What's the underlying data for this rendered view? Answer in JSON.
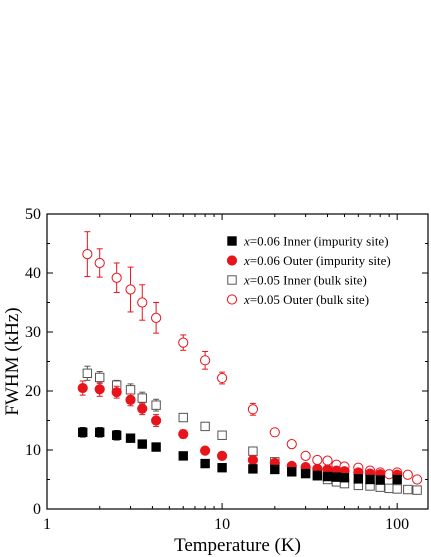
{
  "chart_data": {
    "type": "scatter",
    "xlabel": "Temperature (K)",
    "ylabel": "FWHM (kHz)",
    "xscale": "log",
    "xlim": [
      1,
      150
    ],
    "ylim": [
      0,
      50
    ],
    "xticks": [
      1,
      10,
      100
    ],
    "xtick_labels": [
      "1",
      "10",
      "100"
    ],
    "yticks": [
      0,
      10,
      20,
      30,
      40,
      50
    ],
    "ytick_labels": [
      "0",
      "10",
      "20",
      "30",
      "40",
      "50"
    ],
    "grid": false,
    "legend_position": "top-right",
    "series": [
      {
        "name": "x=0.06 Inner (impurity site)",
        "legend_var": "x",
        "legend_rest": "=0.06 Inner (impurity site)",
        "marker": "square-filled",
        "color": "#000000",
        "points": [
          {
            "x": 1.6,
            "y": 13.0,
            "err": 0.8
          },
          {
            "x": 2.0,
            "y": 13.0,
            "err": 0.8
          },
          {
            "x": 2.5,
            "y": 12.5,
            "err": 0.8
          },
          {
            "x": 3.0,
            "y": 12.0,
            "err": 0.6
          },
          {
            "x": 3.5,
            "y": 11.0,
            "err": 0.5
          },
          {
            "x": 4.2,
            "y": 10.5,
            "err": 0.5
          },
          {
            "x": 6.0,
            "y": 9.0,
            "err": 0
          },
          {
            "x": 8.0,
            "y": 7.7,
            "err": 0
          },
          {
            "x": 10.0,
            "y": 7.0,
            "err": 0
          },
          {
            "x": 15.0,
            "y": 6.8,
            "err": 0
          },
          {
            "x": 20.0,
            "y": 6.7,
            "err": 0
          },
          {
            "x": 25.0,
            "y": 6.3,
            "err": 0
          },
          {
            "x": 30.0,
            "y": 6.0,
            "err": 0
          },
          {
            "x": 35.0,
            "y": 5.7,
            "err": 0
          },
          {
            "x": 40.0,
            "y": 5.5,
            "err": 0
          },
          {
            "x": 45.0,
            "y": 5.4,
            "err": 0
          },
          {
            "x": 50.0,
            "y": 5.3,
            "err": 0
          },
          {
            "x": 60.0,
            "y": 5.1,
            "err": 0
          },
          {
            "x": 70.0,
            "y": 5.0,
            "err": 0
          },
          {
            "x": 80.0,
            "y": 4.9,
            "err": 0
          },
          {
            "x": 100.0,
            "y": 5.0,
            "err": 0
          }
        ]
      },
      {
        "name": "x=0.06 Outer (impurity site)",
        "legend_var": "x",
        "legend_rest": "=0.06 Outer (impurity site)",
        "marker": "circle-filled",
        "color": "#e8141b",
        "points": [
          {
            "x": 1.6,
            "y": 20.5,
            "err": 1.2
          },
          {
            "x": 2.0,
            "y": 20.3,
            "err": 1.2
          },
          {
            "x": 2.5,
            "y": 19.8,
            "err": 1.0
          },
          {
            "x": 3.0,
            "y": 18.5,
            "err": 1.0
          },
          {
            "x": 3.5,
            "y": 17.0,
            "err": 1.0
          },
          {
            "x": 4.2,
            "y": 15.0,
            "err": 1.0
          },
          {
            "x": 6.0,
            "y": 12.7,
            "err": 0.7
          },
          {
            "x": 8.0,
            "y": 9.9,
            "err": 0
          },
          {
            "x": 10.0,
            "y": 9.0,
            "err": 0
          },
          {
            "x": 15.0,
            "y": 8.3,
            "err": 0
          },
          {
            "x": 20.0,
            "y": 7.8,
            "err": 0
          },
          {
            "x": 25.0,
            "y": 7.3,
            "err": 0
          },
          {
            "x": 30.0,
            "y": 7.1,
            "err": 0
          },
          {
            "x": 35.0,
            "y": 6.8,
            "err": 0
          },
          {
            "x": 40.0,
            "y": 6.7,
            "err": 0
          },
          {
            "x": 45.0,
            "y": 6.5,
            "err": 0
          },
          {
            "x": 50.0,
            "y": 6.4,
            "err": 0
          },
          {
            "x": 60.0,
            "y": 6.2,
            "err": 0
          },
          {
            "x": 70.0,
            "y": 6.0,
            "err": 0
          },
          {
            "x": 80.0,
            "y": 5.9,
            "err": 0
          },
          {
            "x": 100.0,
            "y": 5.8,
            "err": 0
          }
        ]
      },
      {
        "name": "x=0.05 Inner (bulk site)",
        "legend_var": "x",
        "legend_rest": "=0.05 Inner (bulk site)",
        "marker": "square-open",
        "color": "#555555",
        "points": [
          {
            "x": 1.7,
            "y": 23.0,
            "err": 1.2
          },
          {
            "x": 2.0,
            "y": 22.3,
            "err": 1.0
          },
          {
            "x": 2.5,
            "y": 21.0,
            "err": 0.8
          },
          {
            "x": 3.0,
            "y": 20.2,
            "err": 1.0
          },
          {
            "x": 3.5,
            "y": 18.8,
            "err": 1.0
          },
          {
            "x": 4.2,
            "y": 17.6,
            "err": 1.0
          },
          {
            "x": 6.0,
            "y": 15.5,
            "err": 0
          },
          {
            "x": 8.0,
            "y": 14.0,
            "err": 0
          },
          {
            "x": 10.0,
            "y": 12.5,
            "err": 0
          },
          {
            "x": 15.0,
            "y": 9.8,
            "err": 0
          },
          {
            "x": 20.0,
            "y": 8.0,
            "err": 0
          },
          {
            "x": 25.0,
            "y": 6.9,
            "err": 0
          },
          {
            "x": 30.0,
            "y": 6.2,
            "err": 0
          },
          {
            "x": 35.0,
            "y": 5.6,
            "err": 0
          },
          {
            "x": 40.0,
            "y": 5.0,
            "err": 0
          },
          {
            "x": 45.0,
            "y": 4.6,
            "err": 0
          },
          {
            "x": 50.0,
            "y": 4.3,
            "err": 0
          },
          {
            "x": 60.0,
            "y": 4.0,
            "err": 0
          },
          {
            "x": 70.0,
            "y": 3.9,
            "err": 0
          },
          {
            "x": 80.0,
            "y": 3.7,
            "err": 0
          },
          {
            "x": 90.0,
            "y": 3.5,
            "err": 0
          },
          {
            "x": 100.0,
            "y": 3.4,
            "err": 0
          },
          {
            "x": 115.0,
            "y": 3.3,
            "err": 0
          },
          {
            "x": 130.0,
            "y": 3.2,
            "err": 0
          }
        ]
      },
      {
        "name": "x=0.05 Outer (bulk site)",
        "legend_var": "x",
        "legend_rest": "=0.05 Outer (bulk site)",
        "marker": "circle-open",
        "color": "#e8141b",
        "points": [
          {
            "x": 1.7,
            "y": 43.2,
            "err": 3.8
          },
          {
            "x": 2.0,
            "y": 41.7,
            "err": 2.4
          },
          {
            "x": 2.5,
            "y": 39.2,
            "err": 2.5
          },
          {
            "x": 3.0,
            "y": 37.2,
            "err": 3.8
          },
          {
            "x": 3.5,
            "y": 35.0,
            "err": 3.0
          },
          {
            "x": 4.2,
            "y": 32.4,
            "err": 2.6
          },
          {
            "x": 6.0,
            "y": 28.2,
            "err": 1.3
          },
          {
            "x": 8.0,
            "y": 25.2,
            "err": 1.5
          },
          {
            "x": 10.0,
            "y": 22.2,
            "err": 1.0
          },
          {
            "x": 15.0,
            "y": 16.9,
            "err": 1.0
          },
          {
            "x": 20.0,
            "y": 13.0,
            "err": 0
          },
          {
            "x": 25.0,
            "y": 11.0,
            "err": 0
          },
          {
            "x": 30.0,
            "y": 9.0,
            "err": 0
          },
          {
            "x": 35.0,
            "y": 8.3,
            "err": 0
          },
          {
            "x": 40.0,
            "y": 8.2,
            "err": 0
          },
          {
            "x": 45.0,
            "y": 7.5,
            "err": 0
          },
          {
            "x": 50.0,
            "y": 7.2,
            "err": 0
          },
          {
            "x": 60.0,
            "y": 7.0,
            "err": 0
          },
          {
            "x": 70.0,
            "y": 6.5,
            "err": 0
          },
          {
            "x": 80.0,
            "y": 6.2,
            "err": 0
          },
          {
            "x": 90.0,
            "y": 5.9,
            "err": 0
          },
          {
            "x": 100.0,
            "y": 6.2,
            "err": 0
          },
          {
            "x": 115.0,
            "y": 5.8,
            "err": 0
          },
          {
            "x": 130.0,
            "y": 5.0,
            "err": 0
          }
        ]
      }
    ]
  }
}
